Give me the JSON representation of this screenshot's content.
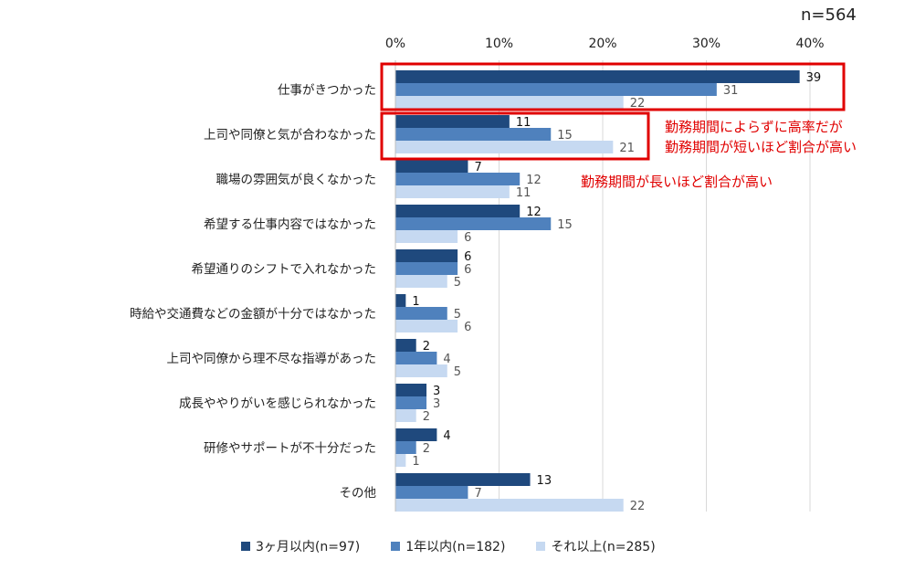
{
  "sample_size": "n=564",
  "annotations": {
    "box1_note_line1": "勤務期間によらずに高率だが",
    "box1_note_line2": "勤務期間が短いほど割合が高い",
    "note2": "勤務期間が長いほど割合が高い"
  },
  "colors": {
    "series1": "#1f497d",
    "series2": "#4f81bd",
    "series3": "#c6d9f1",
    "highlight": "#e00000",
    "grid": "#d9d9d9"
  },
  "chart_data": {
    "type": "bar",
    "orientation": "horizontal",
    "categories": [
      "仕事がきつかった",
      "上司や同僚と気が合わなかった",
      "職場の雰囲気が良くなかった",
      "希望する仕事内容ではなかった",
      "希望通りのシフトで入れなかった",
      "時給や交通費などの金額が十分ではなかった",
      "上司や同僚から理不尽な指導があった",
      "成長ややりがいを感じられなかった",
      "研修やサポートが不十分だった",
      "その他"
    ],
    "series": [
      {
        "name": "3ヶ月以内(n=97)",
        "values": [
          39,
          11,
          7,
          12,
          6,
          1,
          2,
          3,
          4,
          13
        ]
      },
      {
        "name": "1年以内(n=182)",
        "values": [
          31,
          15,
          12,
          15,
          6,
          5,
          4,
          3,
          2,
          7
        ]
      },
      {
        "name": "それ以上(n=285)",
        "values": [
          22,
          21,
          11,
          6,
          5,
          6,
          5,
          2,
          1,
          22
        ]
      }
    ],
    "xlim": [
      0,
      40
    ],
    "xticks": [
      0,
      10,
      20,
      30,
      40
    ],
    "xtick_labels": [
      "0%",
      "10%",
      "20%",
      "30%",
      "40%"
    ],
    "grid": true,
    "legend_position": "bottom"
  }
}
